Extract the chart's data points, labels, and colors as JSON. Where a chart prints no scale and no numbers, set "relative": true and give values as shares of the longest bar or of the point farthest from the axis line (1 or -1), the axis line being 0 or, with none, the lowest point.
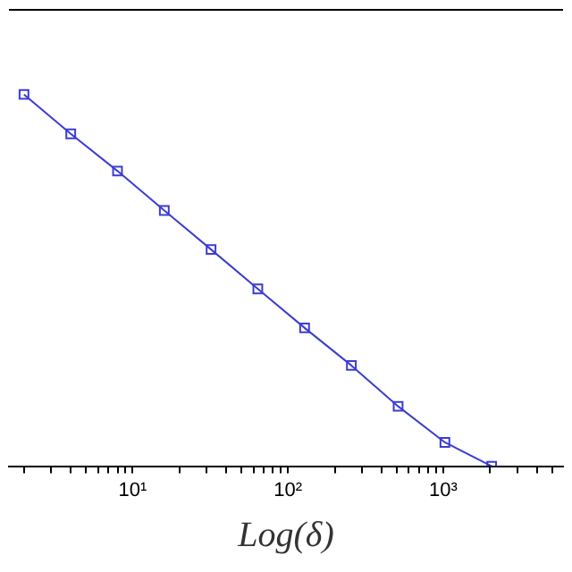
{
  "chart_data": {
    "type": "line",
    "xlabel": "Log(δ)",
    "relative": true,
    "log": "x",
    "x": [
      2,
      4,
      8,
      16,
      32,
      64,
      128,
      256,
      512,
      1024,
      2048
    ],
    "series": [
      {
        "color": "#3c3cd2",
        "values": [
          1,
          0.894,
          0.794,
          0.688,
          0.583,
          0.477,
          0.372,
          0.271,
          0.161,
          0.064,
          0
        ]
      }
    ],
    "xlim": [
      1.6,
      5900
    ],
    "xticks": [
      {
        "value": 2,
        "label": null
      },
      {
        "value": 3,
        "label": null
      },
      {
        "value": 4,
        "label": null
      },
      {
        "value": 5,
        "label": null
      },
      {
        "value": 6,
        "label": null
      },
      {
        "value": 7,
        "label": null
      },
      {
        "value": 8,
        "label": null
      },
      {
        "value": 9,
        "label": null
      },
      {
        "value": 10,
        "label": "10¹"
      },
      {
        "value": 20,
        "label": null
      },
      {
        "value": 30,
        "label": null
      },
      {
        "value": 40,
        "label": null
      },
      {
        "value": 50,
        "label": null
      },
      {
        "value": 60,
        "label": null
      },
      {
        "value": 70,
        "label": null
      },
      {
        "value": 80,
        "label": null
      },
      {
        "value": 90,
        "label": null
      },
      {
        "value": 100,
        "label": "10²"
      },
      {
        "value": 200,
        "label": null
      },
      {
        "value": 300,
        "label": null
      },
      {
        "value": 400,
        "label": null
      },
      {
        "value": 500,
        "label": null
      },
      {
        "value": 600,
        "label": null
      },
      {
        "value": 700,
        "label": null
      },
      {
        "value": 800,
        "label": null
      },
      {
        "value": 900,
        "label": null
      },
      {
        "value": 1000,
        "label": "10³"
      },
      {
        "value": 2000,
        "label": null
      },
      {
        "value": 3000,
        "label": null
      },
      {
        "value": 4000,
        "label": null
      },
      {
        "value": 5000,
        "label": null
      }
    ],
    "grid": false,
    "legend": false,
    "marker": "square",
    "line_style": "solid"
  }
}
